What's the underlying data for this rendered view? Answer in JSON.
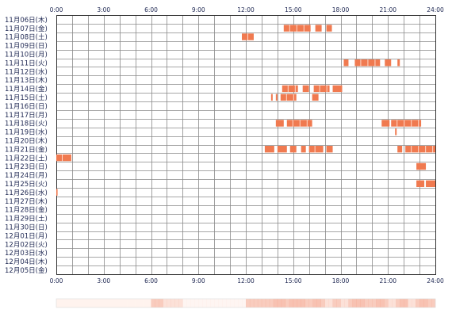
{
  "chart_data": {
    "type": "heatmap",
    "x_ticks": [
      "0:00",
      "3:00",
      "6:00",
      "9:00",
      "12:00",
      "15:00",
      "18:00",
      "21:00",
      "24:00"
    ],
    "xlim": [
      0,
      24
    ],
    "grid": true,
    "days": [
      "11月06日(木)",
      "11月07日(金)",
      "11月08日(土)",
      "11月09日(日)",
      "11月10日(月)",
      "11月11日(火)",
      "11月12日(水)",
      "11月13日(木)",
      "11月14日(金)",
      "11月15日(土)",
      "11月16日(日)",
      "11月17日(月)",
      "11月18日(火)",
      "11月19日(水)",
      "11月20日(木)",
      "11月21日(金)",
      "11月22日(土)",
      "11月23日(日)",
      "11月24日(月)",
      "11月25日(火)",
      "11月26日(水)",
      "11月27日(木)",
      "11月28日(金)",
      "11月29日(土)",
      "11月30日(日)",
      "12月01日(月)",
      "12月02日(火)",
      "12月03日(水)",
      "12月04日(木)",
      "12月05日(金)"
    ],
    "activity": [
      {
        "day": 1,
        "start": 14.4,
        "end": 16.1
      },
      {
        "day": 1,
        "start": 16.4,
        "end": 16.8
      },
      {
        "day": 1,
        "start": 17.1,
        "end": 17.45
      },
      {
        "day": 2,
        "start": 11.75,
        "end": 12.5
      },
      {
        "day": 5,
        "start": 18.2,
        "end": 18.5
      },
      {
        "day": 5,
        "start": 18.9,
        "end": 20.5
      },
      {
        "day": 5,
        "start": 20.8,
        "end": 21.2
      },
      {
        "day": 5,
        "start": 21.6,
        "end": 21.75
      },
      {
        "day": 8,
        "start": 14.3,
        "end": 15.3
      },
      {
        "day": 8,
        "start": 15.6,
        "end": 16.0
      },
      {
        "day": 8,
        "start": 16.3,
        "end": 17.3
      },
      {
        "day": 8,
        "start": 17.5,
        "end": 18.1
      },
      {
        "day": 9,
        "start": 13.6,
        "end": 13.7
      },
      {
        "day": 9,
        "start": 13.9,
        "end": 14.0
      },
      {
        "day": 9,
        "start": 14.2,
        "end": 15.2
      },
      {
        "day": 9,
        "start": 16.2,
        "end": 16.6
      },
      {
        "day": 12,
        "start": 13.9,
        "end": 14.4
      },
      {
        "day": 12,
        "start": 14.6,
        "end": 16.2
      },
      {
        "day": 12,
        "start": 20.6,
        "end": 21.1
      },
      {
        "day": 12,
        "start": 21.2,
        "end": 23.1
      },
      {
        "day": 13,
        "start": 21.45,
        "end": 21.55
      },
      {
        "day": 15,
        "start": 13.2,
        "end": 13.8
      },
      {
        "day": 15,
        "start": 14.0,
        "end": 14.6
      },
      {
        "day": 15,
        "start": 14.8,
        "end": 15.2
      },
      {
        "day": 15,
        "start": 15.5,
        "end": 15.8
      },
      {
        "day": 15,
        "start": 16.0,
        "end": 16.9
      },
      {
        "day": 15,
        "start": 17.1,
        "end": 17.5
      },
      {
        "day": 15,
        "start": 21.6,
        "end": 21.9
      },
      {
        "day": 15,
        "start": 22.1,
        "end": 24.0
      },
      {
        "day": 16,
        "start": 0.0,
        "end": 0.95
      },
      {
        "day": 17,
        "start": 22.8,
        "end": 23.4
      },
      {
        "day": 19,
        "start": 22.8,
        "end": 23.3
      },
      {
        "day": 19,
        "start": 23.4,
        "end": 24.0
      },
      {
        "day": 20,
        "start": 0.0,
        "end": 0.08
      }
    ],
    "density": [
      0.0,
      0.0,
      0.0,
      0.0,
      0.0,
      0.0,
      0.0,
      0.0,
      0.0,
      0.0,
      0.0,
      0.0,
      0.0,
      0.0,
      0.0,
      0.0,
      0.0,
      0.0,
      0.0,
      0.0,
      0.0,
      0.0,
      0.0,
      0.0,
      0.5,
      0.5,
      0.5,
      0.3,
      0.3,
      0.3,
      0.3,
      0.3,
      0.1,
      0.1,
      0.1,
      0.1,
      0.1,
      0.1,
      0.1,
      0.1,
      0.1,
      0.1,
      0.1,
      0.1,
      0.1,
      0.1,
      0.1,
      0.1,
      0.5,
      0.5,
      0.5,
      0.5,
      0.5,
      0.5,
      0.5,
      0.6,
      0.6,
      0.6,
      0.5,
      0.6,
      0.6,
      0.6,
      0.6,
      0.5,
      0.5,
      0.6,
      0.6,
      0.5,
      0.3,
      0.3,
      0.5,
      0.5,
      0.3,
      0.3,
      0.5,
      0.6,
      0.6,
      0.6,
      0.5,
      0.5,
      0.5,
      0.6,
      0.6,
      0.5,
      0.3,
      0.3,
      0.5,
      0.6,
      0.6,
      0.3,
      0.3,
      0.5,
      0.6,
      0.6,
      0.5,
      0.5
    ],
    "colors": {
      "bar": "#f07a50",
      "bar_gap": "#ffd8c8",
      "grid": "#8a8a8a",
      "border": "#333333",
      "label": "#222b55",
      "density_high": "#f49a7e",
      "density_low": "#fff3ee"
    }
  }
}
